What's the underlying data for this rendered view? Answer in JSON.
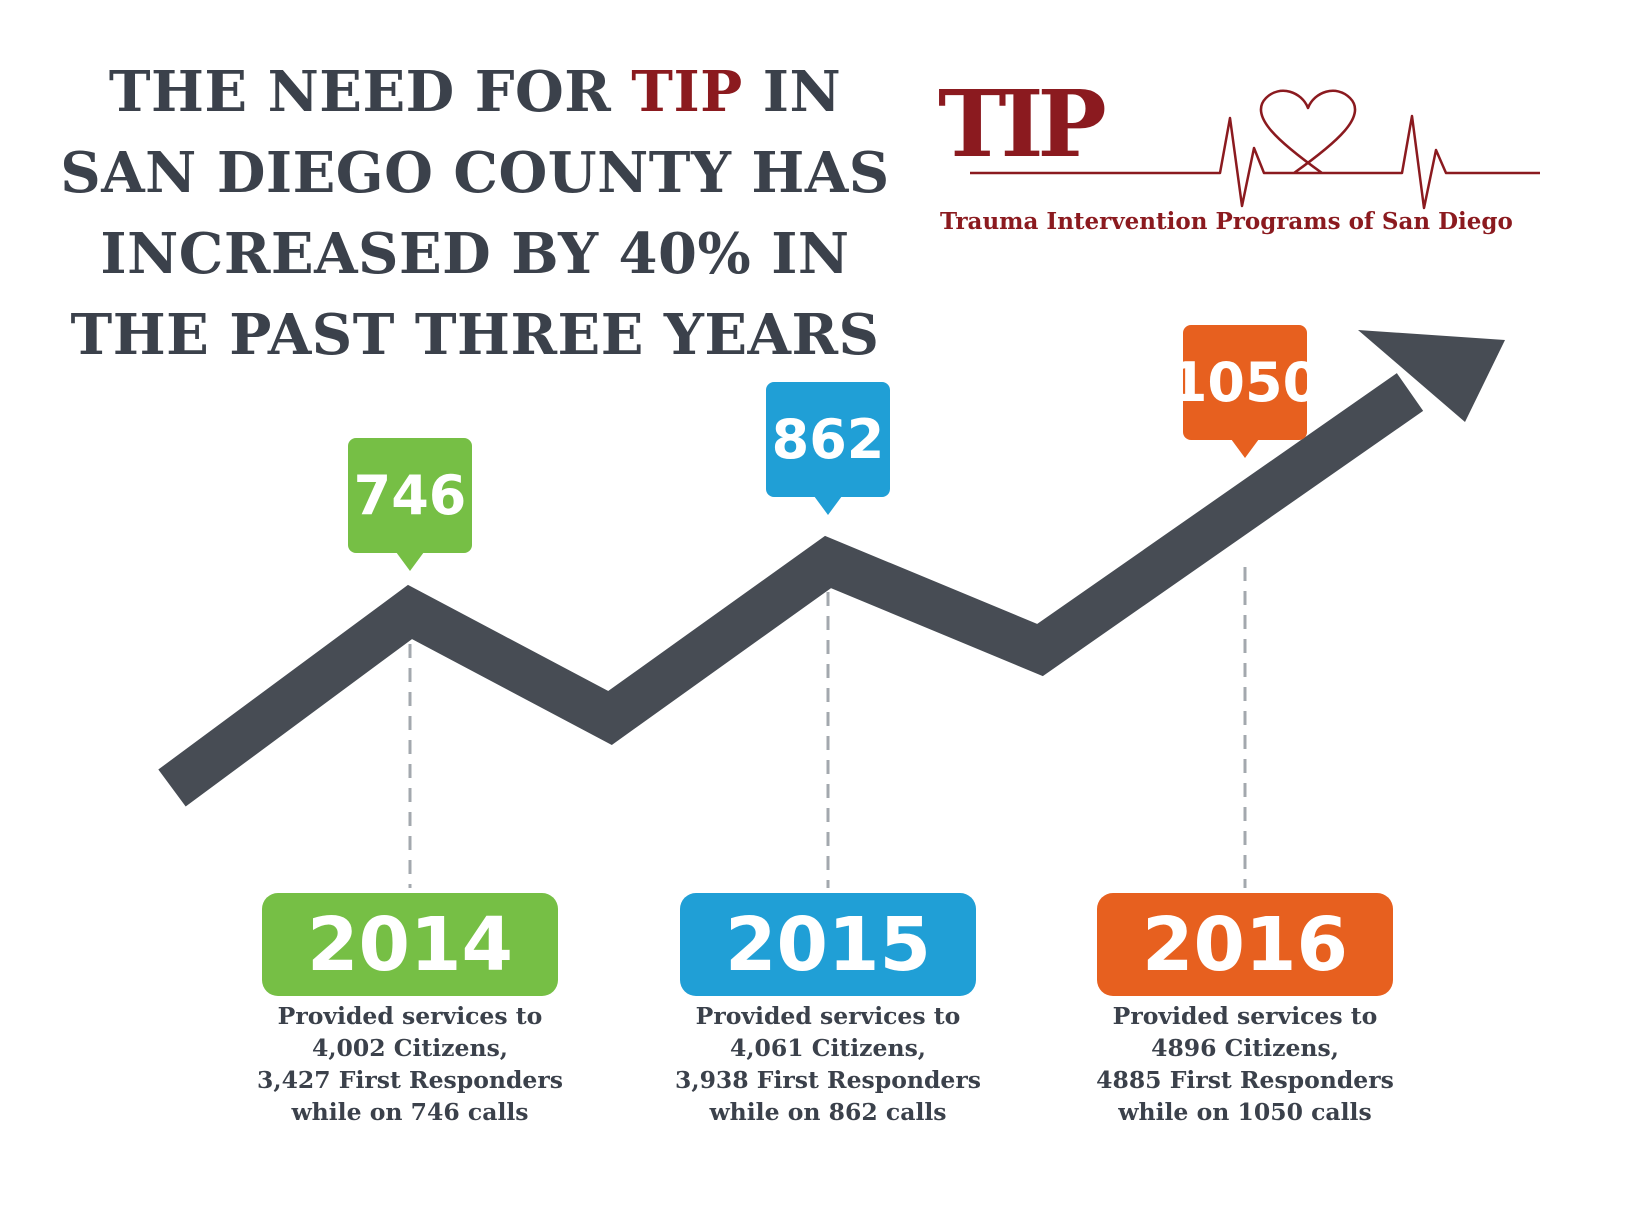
{
  "headline": {
    "line1_a": "THE NEED FOR ",
    "line1_accent": "TIP",
    "line1_b": " IN",
    "line2": "SAN DIEGO COUNTY HAS",
    "line3": "INCREASED BY 40% IN",
    "line4": "THE PAST THREE YEARS"
  },
  "logo": {
    "mark": "TIP",
    "tagline": "Trauma Intervention Programs of San Diego",
    "color": "#8b1a1f"
  },
  "colors": {
    "text": "#3b414b",
    "line": "#474c54",
    "green": "#76bf45",
    "blue": "#209fd6",
    "orange": "#e7601f"
  },
  "chart_data": {
    "type": "line",
    "x": [
      "2014",
      "2015",
      "2016"
    ],
    "values": [
      746,
      862,
      1050
    ],
    "value_labels": [
      "746",
      "862",
      "1050"
    ]
  },
  "years": [
    {
      "year": "2014",
      "line1": "Provided services to",
      "line2": "4,002 Citizens,",
      "line3": "3,427 First Responders",
      "line4": "while on 746 calls"
    },
    {
      "year": "2015",
      "line1": "Provided services to",
      "line2": "4,061 Citizens,",
      "line3": "3,938 First Responders",
      "line4": "while on 862 calls"
    },
    {
      "year": "2016",
      "line1": "Provided services to",
      "line2": "4896 Citizens,",
      "line3": "4885 First Responders",
      "line4": "while on 1050 calls"
    }
  ]
}
